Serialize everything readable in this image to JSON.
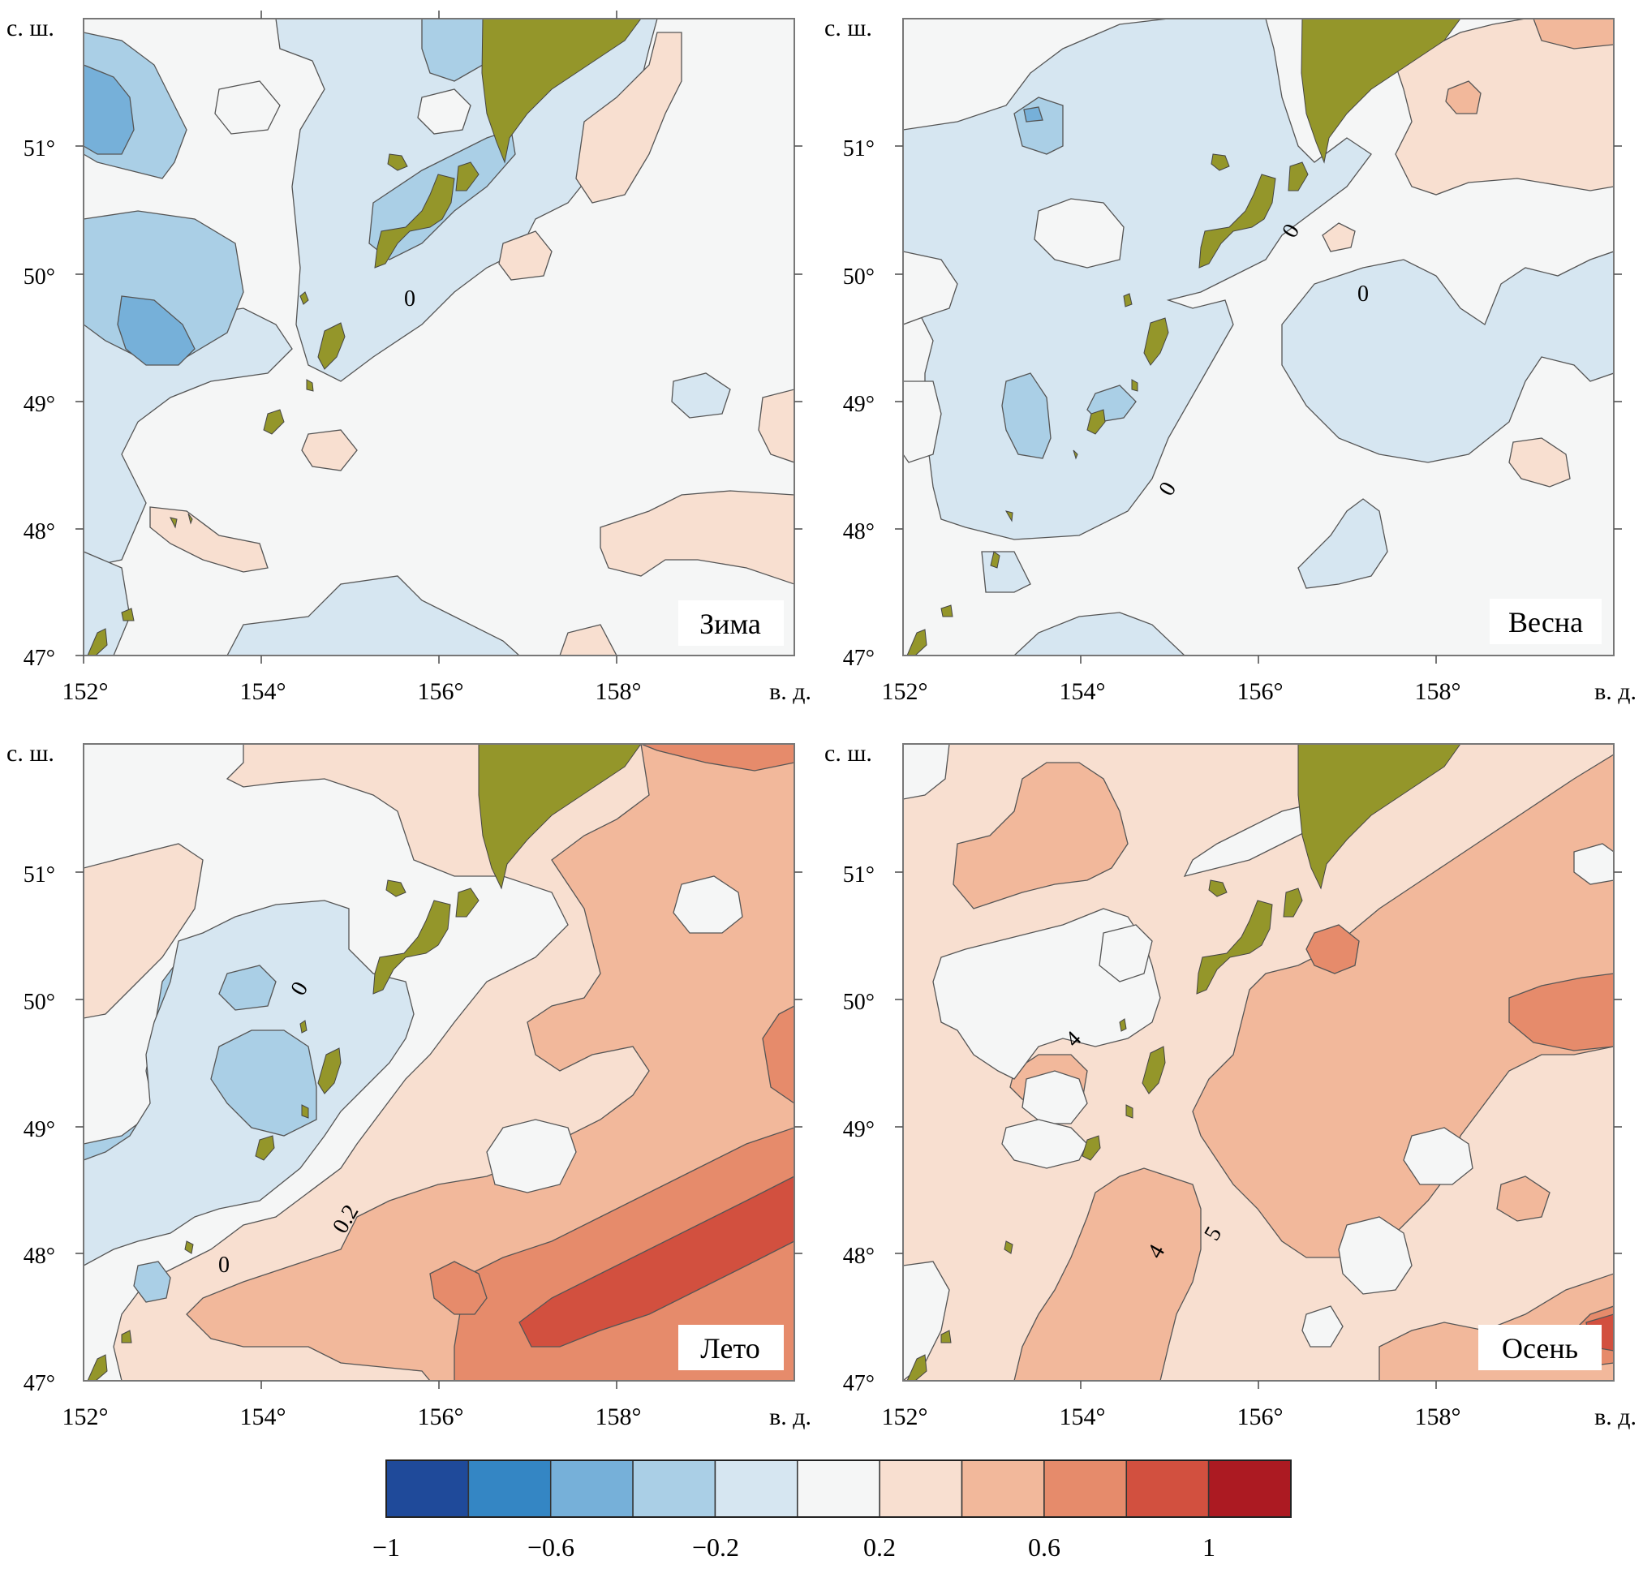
{
  "figure": {
    "lat_unit_label": "с. ш.",
    "lon_unit_label": "в. д.",
    "lon_ticks": [
      "152°",
      "154°",
      "156°",
      "158°"
    ],
    "lat_ticks": [
      "51°",
      "50°",
      "49°",
      "48°",
      "47°"
    ],
    "lon_range": [
      152,
      160
    ],
    "lat_range": [
      47,
      52
    ],
    "land_color": "#94962a",
    "panels": [
      {
        "season": "Зима",
        "contour_labels": [
          "0"
        ]
      },
      {
        "season": "Весна",
        "contour_labels": [
          "0",
          "0",
          "0"
        ]
      },
      {
        "season": "Лето",
        "contour_labels": [
          "0",
          "0.2",
          "0"
        ]
      },
      {
        "season": "Осень",
        "contour_labels": [
          "4",
          "4",
          "5"
        ]
      }
    ]
  },
  "colorbar": {
    "colors": [
      "#1f4a9a",
      "#3486c4",
      "#76b0d9",
      "#aacfe6",
      "#d6e6f1",
      "#f5f6f6",
      "#f8dfd0",
      "#f2b89b",
      "#e68b6b",
      "#d2503f",
      "#ac1a22"
    ],
    "tick_labels": [
      "−1",
      "−0.6",
      "−0.2",
      "0.2",
      "0.6",
      "1"
    ]
  }
}
